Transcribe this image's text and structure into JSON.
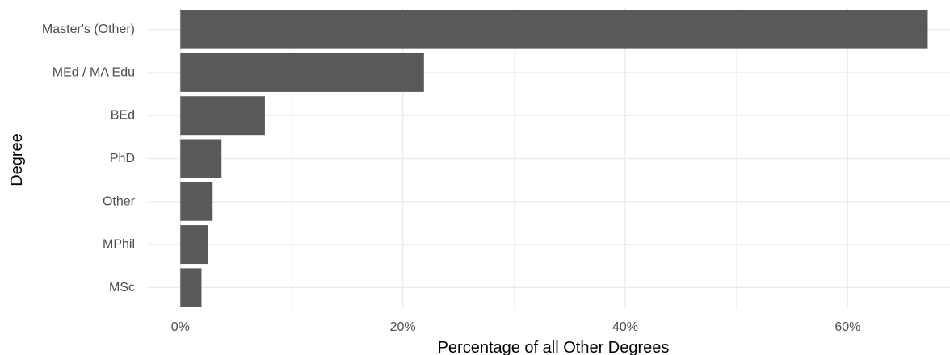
{
  "chart_data": {
    "type": "bar",
    "orientation": "horizontal",
    "categories": [
      "Master's (Other)",
      "MEd / MA Edu",
      "BEd",
      "PhD",
      "Other",
      "MPhil",
      "MSc"
    ],
    "values": [
      67.2,
      21.9,
      7.6,
      3.7,
      2.9,
      2.5,
      1.9
    ],
    "value_unit": "percent",
    "xlabel": "Percentage of all Other Degrees",
    "ylabel": "Degree",
    "xlim": [
      -3.0,
      69.2
    ],
    "x_ticks": [
      0,
      20,
      40,
      60
    ],
    "x_tick_labels": [
      "0%",
      "20%",
      "40%",
      "60%"
    ],
    "grid": true,
    "bar_color": "#595959",
    "grid_color": "#ebebeb"
  }
}
